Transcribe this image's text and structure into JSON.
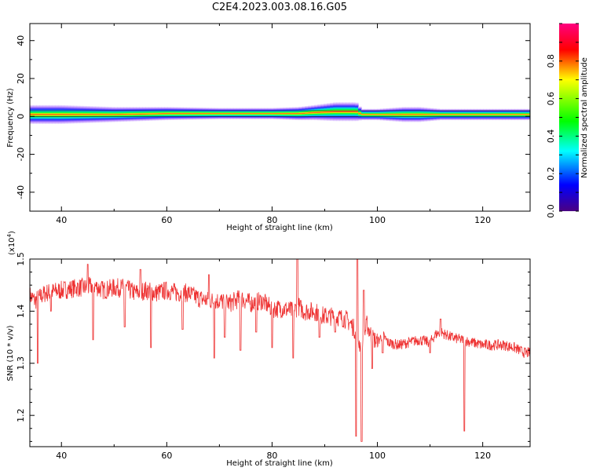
{
  "title": "C2E4.2023.003.08.16.G05",
  "chart_data": [
    {
      "type": "heatmap",
      "xlabel": "Height of straight line (km)",
      "ylabel": "Frequency (Hz)",
      "xlim": [
        34,
        129
      ],
      "ylim": [
        -50,
        49
      ],
      "xticks": [
        40,
        60,
        80,
        100,
        120
      ],
      "yticks": [
        -40,
        -20,
        0,
        20,
        40
      ],
      "colorbar": {
        "label": "Normalized spectral amplitude",
        "range": [
          0.0,
          1.0
        ],
        "ticks": [
          0.0,
          0.2,
          0.4,
          0.6,
          0.8
        ],
        "colormap": [
          "#4b0082",
          "#0000ff",
          "#00ffff",
          "#00ff00",
          "#ffff00",
          "#ff0000",
          "#ff007f"
        ]
      },
      "band_profile": {
        "heights": [
          34,
          40,
          50,
          60,
          70,
          80,
          85,
          88,
          92,
          96,
          97,
          100,
          105,
          108,
          112,
          120,
          129
        ],
        "center_hz": [
          1,
          1,
          1,
          1.5,
          1.5,
          1.5,
          1.5,
          2,
          2.5,
          2.5,
          1,
          1,
          1,
          1,
          1,
          1,
          1
        ],
        "half_width_hz": [
          5,
          5,
          4,
          3.5,
          3,
          3,
          3.5,
          4,
          5,
          5,
          3,
          3,
          4,
          4,
          3,
          3,
          3
        ]
      }
    },
    {
      "type": "line",
      "xlabel": "Height of straight line (km)",
      "ylabel": "SNR (10 * v/v)",
      "yscale_label": "(x10",
      "yscale_exp": "4",
      "xlim": [
        34,
        129
      ],
      "ylim": [
        11400,
        15000
      ],
      "xticks": [
        40,
        60,
        80,
        100,
        120
      ],
      "yticks": [
        12000,
        13000,
        14000,
        15000
      ],
      "ytick_labels": [
        "1.2",
        "1.3",
        "1.4",
        "1.5"
      ],
      "color": "#ee3333",
      "series": [
        {
          "x": [
            34,
            35,
            37,
            40,
            43,
            45,
            46,
            48,
            50,
            52,
            54,
            56,
            58,
            60,
            62,
            64,
            66,
            68,
            70,
            72,
            74,
            76,
            78,
            80,
            82,
            84,
            85,
            86,
            88,
            90,
            92,
            94,
            95,
            96,
            96.5,
            97,
            98,
            99,
            100,
            101,
            102,
            104,
            106,
            108,
            110,
            111,
            112,
            114,
            116,
            118,
            120,
            122,
            124,
            126,
            128,
            129
          ],
          "y": [
            14300,
            14200,
            14350,
            14400,
            14450,
            14450,
            14500,
            14400,
            14450,
            14450,
            14350,
            14400,
            14350,
            14400,
            14350,
            14350,
            14250,
            14200,
            14200,
            14150,
            14250,
            14150,
            14200,
            14050,
            14050,
            14000,
            14100,
            14000,
            14000,
            13900,
            13900,
            13850,
            13750,
            13600,
            13400,
            13300,
            13750,
            13500,
            13400,
            13550,
            13400,
            13350,
            13400,
            13450,
            13400,
            13550,
            13600,
            13500,
            13450,
            13400,
            13350,
            13350,
            13350,
            13300,
            13200,
            13200
          ],
          "dips": [
            [
              35.5,
              13000
            ],
            [
              38,
              14000
            ],
            [
              46,
              13450
            ],
            [
              52,
              13700
            ],
            [
              57,
              13300
            ],
            [
              63,
              13650
            ],
            [
              68,
              13400
            ],
            [
              69,
              13100
            ],
            [
              71,
              13500
            ],
            [
              74,
              13250
            ],
            [
              77,
              13600
            ],
            [
              80,
              13300
            ],
            [
              84,
              13100
            ],
            [
              89,
              13500
            ],
            [
              92,
              13600
            ],
            [
              96,
              11600
            ],
            [
              97,
              11500
            ],
            [
              99,
              12900
            ],
            [
              101,
              13200
            ],
            [
              110,
              13200
            ],
            [
              116.5,
              11700
            ]
          ],
          "spikes": [
            [
              45,
              14900
            ],
            [
              55,
              14800
            ],
            [
              68,
              14700
            ],
            [
              84.8,
              15000
            ],
            [
              96.2,
              15000
            ],
            [
              97.4,
              14400
            ],
            [
              112,
              13850
            ]
          ]
        }
      ]
    }
  ]
}
